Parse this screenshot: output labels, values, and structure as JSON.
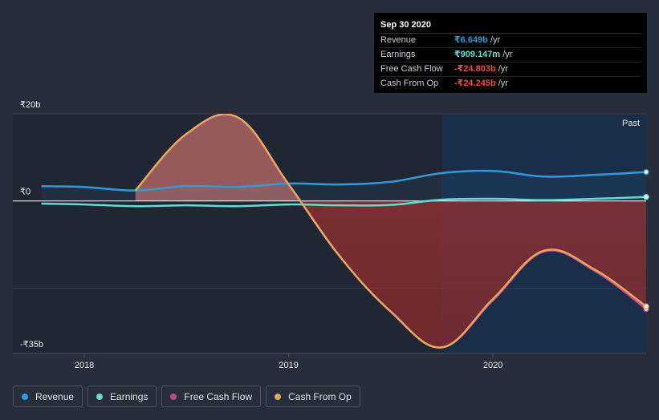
{
  "tooltip": {
    "date": "Sep 30 2020",
    "rows": [
      {
        "label": "Revenue",
        "value": "₹6.649b",
        "unit": "/yr",
        "color": "#2d9cdb"
      },
      {
        "label": "Earnings",
        "value": "₹909.147m",
        "unit": "/yr",
        "color": "#5ce0d2"
      },
      {
        "label": "Free Cash Flow",
        "value": "-₹24.803b",
        "unit": "/yr",
        "color": "#f04a4a"
      },
      {
        "label": "Cash From Op",
        "value": "-₹24.245b",
        "unit": "/yr",
        "color": "#f04a4a"
      }
    ]
  },
  "past_label": "Past",
  "legend": [
    {
      "label": "Revenue",
      "color": "#2d9cdb"
    },
    {
      "label": "Earnings",
      "color": "#5ce0d2"
    },
    {
      "label": "Free Cash Flow",
      "color": "#c7488a"
    },
    {
      "label": "Cash From Op",
      "color": "#e8a65c"
    }
  ],
  "chart_data": {
    "type": "area",
    "title": "",
    "xlabel": "",
    "ylabel": "",
    "ylim": [
      -35,
      20
    ],
    "xlim": [
      2017.65,
      2020.75
    ],
    "past_start": 2019.75,
    "y_tick_labels": [
      {
        "value": 20,
        "label": "₹20b"
      },
      {
        "value": 0,
        "label": "₹0"
      },
      {
        "value": -35,
        "label": "-₹35b"
      }
    ],
    "x_tick_labels": [
      {
        "value": 2018.0,
        "label": "2018"
      },
      {
        "value": 2019.0,
        "label": "2019"
      },
      {
        "value": 2020.0,
        "label": "2020"
      }
    ],
    "series": [
      {
        "name": "Revenue",
        "color": "#2d9cdb",
        "x": [
          2017.79,
          2018.0,
          2018.25,
          2018.5,
          2018.75,
          2019.0,
          2019.25,
          2019.5,
          2019.75,
          2020.0,
          2020.25,
          2020.5,
          2020.75
        ],
        "values": [
          3.4,
          3.2,
          2.4,
          3.4,
          3.2,
          4.0,
          3.8,
          4.4,
          6.4,
          6.9,
          5.6,
          6.0,
          6.65
        ]
      },
      {
        "name": "Earnings",
        "color": "#5ce0d2",
        "x": [
          2017.79,
          2018.0,
          2018.25,
          2018.5,
          2018.75,
          2019.0,
          2019.25,
          2019.5,
          2019.75,
          2020.0,
          2020.25,
          2020.5,
          2020.75
        ],
        "values": [
          -0.6,
          -0.8,
          -1.2,
          -1.0,
          -1.2,
          -0.8,
          -1.0,
          -0.9,
          0.3,
          0.5,
          0.2,
          0.5,
          0.91
        ]
      },
      {
        "name": "Free Cash Flow",
        "color": "#c7488a",
        "x": [
          2018.25,
          2018.5,
          2018.75,
          2019.0,
          2019.25,
          2019.5,
          2019.75,
          2020.0,
          2020.25,
          2020.5,
          2020.75
        ],
        "values": [
          2.4,
          15.4,
          19.2,
          3.8,
          -12.7,
          -25.4,
          -33.6,
          -22.8,
          -11.6,
          -16.1,
          -24.8
        ]
      },
      {
        "name": "Cash From Op",
        "color": "#e8a65c",
        "x": [
          2018.25,
          2018.5,
          2018.75,
          2019.0,
          2019.25,
          2019.5,
          2019.75,
          2020.0,
          2020.25,
          2020.5,
          2020.75
        ],
        "values": [
          2.4,
          15.4,
          19.2,
          3.8,
          -12.7,
          -25.4,
          -33.6,
          -22.5,
          -11.4,
          -15.8,
          -24.2
        ]
      }
    ]
  }
}
